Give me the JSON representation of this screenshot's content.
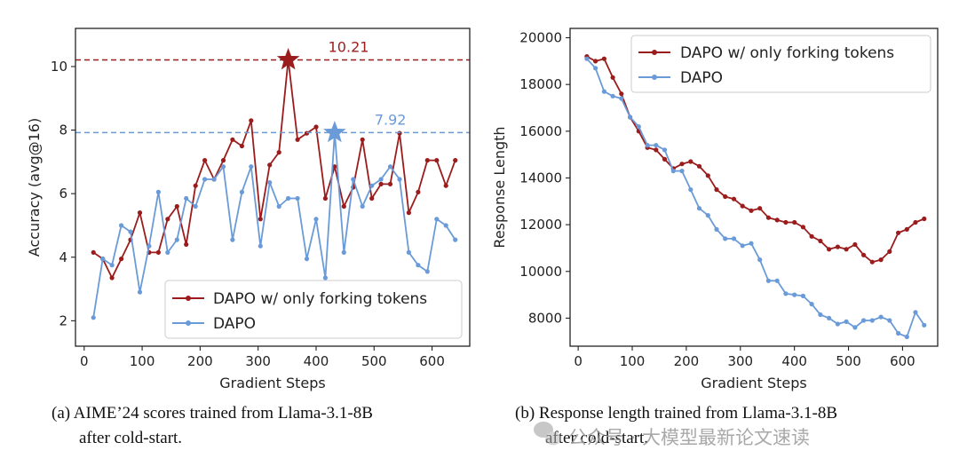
{
  "colors": {
    "forking": "#9b1c1c",
    "dapo": "#6a9bd8",
    "axis": "#222222"
  },
  "chart_data": [
    {
      "type": "line",
      "xlabel": "Gradient Steps",
      "ylabel": "Accuracy (avg@16)",
      "xlim": [
        -15,
        665
      ],
      "ylim": [
        1.2,
        11.2
      ],
      "xticks": [
        0,
        100,
        200,
        300,
        400,
        500,
        600
      ],
      "yticks": [
        2,
        4,
        6,
        8,
        10
      ],
      "legend_position": "lower-right",
      "series": [
        {
          "name": "DAPO w/ only forking tokens",
          "color": "#9b1c1c",
          "x": [
            16,
            32,
            48,
            64,
            80,
            96,
            112,
            128,
            144,
            160,
            176,
            192,
            208,
            224,
            240,
            256,
            272,
            288,
            304,
            320,
            336,
            352,
            368,
            384,
            400,
            416,
            432,
            448,
            464,
            480,
            496,
            512,
            528,
            544,
            560,
            576,
            592,
            608,
            624,
            640
          ],
          "y": [
            4.15,
            3.95,
            3.35,
            3.95,
            4.55,
            5.4,
            4.15,
            4.15,
            5.2,
            5.6,
            4.4,
            6.25,
            7.05,
            6.45,
            7.05,
            7.7,
            7.5,
            8.3,
            5.2,
            6.9,
            7.3,
            10.21,
            7.7,
            7.9,
            8.1,
            5.85,
            6.85,
            5.6,
            6.2,
            7.7,
            5.85,
            6.3,
            6.3,
            7.9,
            5.4,
            6.05,
            7.05,
            7.05,
            6.25,
            7.05
          ]
        },
        {
          "name": "DAPO",
          "color": "#6a9bd8",
          "x": [
            16,
            32,
            48,
            64,
            80,
            96,
            112,
            128,
            144,
            160,
            176,
            192,
            208,
            224,
            240,
            256,
            272,
            288,
            304,
            320,
            336,
            352,
            368,
            384,
            400,
            416,
            432,
            448,
            464,
            480,
            496,
            512,
            528,
            544,
            560,
            576,
            592,
            608,
            624,
            640
          ],
          "y": [
            2.1,
            3.95,
            3.75,
            5.0,
            4.8,
            2.9,
            4.35,
            6.05,
            4.15,
            4.55,
            5.85,
            5.6,
            6.45,
            6.45,
            6.85,
            4.55,
            6.05,
            6.85,
            4.35,
            6.35,
            5.6,
            5.85,
            5.85,
            3.95,
            5.2,
            3.35,
            7.92,
            4.15,
            6.45,
            5.6,
            6.25,
            6.45,
            6.85,
            6.45,
            4.15,
            3.75,
            3.55,
            5.2,
            5.0,
            4.55
          ]
        }
      ],
      "reference_lines": [
        {
          "value": 10.21,
          "label": "10.21",
          "color": "#9b1c1c",
          "star_x": 352
        },
        {
          "value": 7.92,
          "label": "7.92",
          "color": "#6a9bd8",
          "star_x": 432
        }
      ]
    },
    {
      "type": "line",
      "xlabel": "Gradient Steps",
      "ylabel": "Response Length",
      "xlim": [
        -15,
        665
      ],
      "ylim": [
        6800,
        20400
      ],
      "xticks": [
        0,
        100,
        200,
        300,
        400,
        500,
        600
      ],
      "yticks": [
        8000,
        10000,
        12000,
        14000,
        16000,
        18000,
        20000
      ],
      "legend_position": "upper-right",
      "series": [
        {
          "name": "DAPO w/ only forking tokens",
          "color": "#9b1c1c",
          "x": [
            16,
            32,
            48,
            64,
            80,
            96,
            112,
            128,
            144,
            160,
            176,
            192,
            208,
            224,
            240,
            256,
            272,
            288,
            304,
            320,
            336,
            352,
            368,
            384,
            400,
            416,
            432,
            448,
            464,
            480,
            496,
            512,
            528,
            544,
            560,
            576,
            592,
            608,
            624,
            640
          ],
          "y": [
            19200,
            19000,
            19100,
            18300,
            17600,
            16600,
            16000,
            15300,
            15200,
            14800,
            14400,
            14600,
            14700,
            14500,
            14100,
            13500,
            13200,
            13100,
            12800,
            12600,
            12700,
            12300,
            12200,
            12100,
            12100,
            11900,
            11500,
            11300,
            10950,
            11050,
            10950,
            11150,
            10700,
            10400,
            10500,
            10850,
            11650,
            11800,
            12100,
            12250
          ]
        },
        {
          "name": "DAPO",
          "color": "#6a9bd8",
          "x": [
            16,
            32,
            48,
            64,
            80,
            96,
            112,
            128,
            144,
            160,
            176,
            192,
            208,
            224,
            240,
            256,
            272,
            288,
            304,
            320,
            336,
            352,
            368,
            384,
            400,
            416,
            432,
            448,
            464,
            480,
            496,
            512,
            528,
            544,
            560,
            576,
            592,
            608,
            624,
            640
          ],
          "y": [
            19100,
            18700,
            17700,
            17500,
            17400,
            16600,
            16200,
            15400,
            15400,
            15200,
            14300,
            14300,
            13500,
            12700,
            12400,
            11800,
            11400,
            11400,
            11100,
            11200,
            10500,
            9600,
            9600,
            9050,
            9000,
            8950,
            8600,
            8150,
            8000,
            7750,
            7850,
            7600,
            7900,
            7900,
            8050,
            7900,
            7350,
            7200,
            8250,
            7700
          ]
        }
      ]
    }
  ],
  "captions": {
    "left": [
      "(a) AIME’24 scores trained from Llama-3.1-8B",
      "after cold-start."
    ],
    "right": [
      "(b) Response length trained from Llama-3.1-8B",
      "after cold-start."
    ]
  },
  "watermark": "公众号 · 大模型最新论文速读"
}
